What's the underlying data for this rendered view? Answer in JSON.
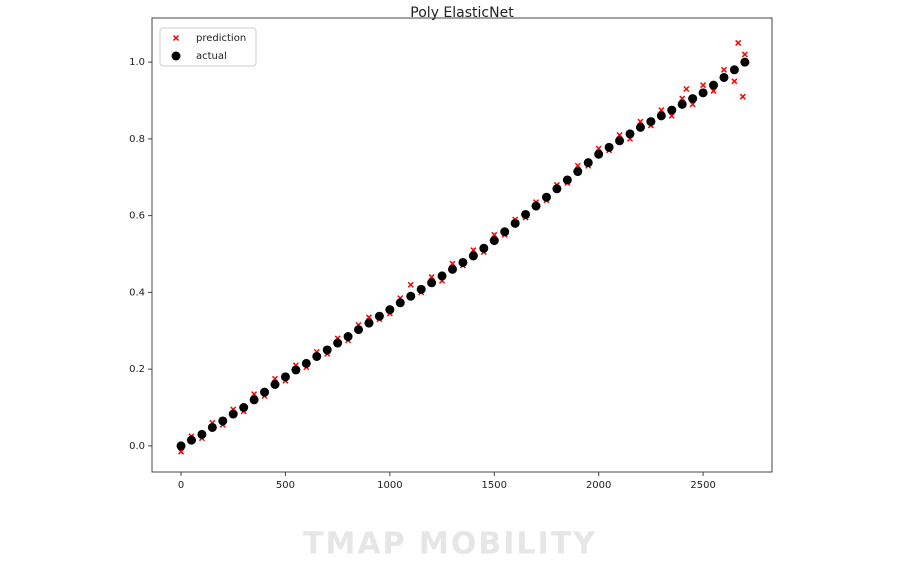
{
  "chart_data": {
    "type": "scatter",
    "title": "Poly ElasticNet",
    "xlim": [
      -139,
      2830
    ],
    "ylim": [
      -0.068,
      1.115
    ],
    "xticks": [
      0,
      500,
      1000,
      1500,
      2000,
      2500
    ],
    "yticks": [
      {
        "value": 0,
        "label": "0.0"
      },
      0.2,
      0.4,
      0.6,
      0.8,
      {
        "value": 1,
        "label": "1.0"
      }
    ],
    "legend": "upper left",
    "series": [
      {
        "name": "prediction",
        "color": "#ff0000",
        "marker": "x",
        "x": [
          0,
          50,
          100,
          150,
          200,
          250,
          300,
          350,
          400,
          450,
          500,
          550,
          600,
          650,
          700,
          750,
          800,
          850,
          900,
          950,
          1000,
          1050,
          1100,
          1150,
          1200,
          1250,
          1300,
          1350,
          1400,
          1450,
          1500,
          1550,
          1600,
          1650,
          1700,
          1750,
          1800,
          1850,
          1900,
          1950,
          2000,
          2050,
          2100,
          2150,
          2200,
          2250,
          2300,
          2350,
          2400,
          2450,
          2500,
          2550,
          2600,
          2650,
          2700,
          2668,
          2690,
          2420
        ],
        "values": [
          -0.015,
          0.025,
          0.02,
          0.06,
          0.055,
          0.095,
          0.09,
          0.135,
          0.13,
          0.175,
          0.17,
          0.21,
          0.205,
          0.245,
          0.24,
          0.28,
          0.275,
          0.315,
          0.335,
          0.33,
          0.345,
          0.385,
          0.42,
          0.4,
          0.44,
          0.43,
          0.475,
          0.47,
          0.51,
          0.505,
          0.55,
          0.55,
          0.59,
          0.595,
          0.635,
          0.64,
          0.68,
          0.685,
          0.73,
          0.73,
          0.775,
          0.77,
          0.81,
          0.8,
          0.845,
          0.835,
          0.875,
          0.86,
          0.905,
          0.89,
          0.94,
          0.925,
          0.98,
          0.95,
          1.02,
          1.05,
          0.91,
          0.93
        ]
      },
      {
        "name": "actual",
        "color": "#000000",
        "marker": "o",
        "x": [
          0,
          50,
          100,
          150,
          200,
          250,
          300,
          350,
          400,
          450,
          500,
          550,
          600,
          650,
          700,
          750,
          800,
          850,
          900,
          950,
          1000,
          1050,
          1100,
          1150,
          1200,
          1250,
          1300,
          1350,
          1400,
          1450,
          1500,
          1550,
          1600,
          1650,
          1700,
          1750,
          1800,
          1850,
          1900,
          1950,
          2000,
          2050,
          2100,
          2150,
          2200,
          2250,
          2300,
          2350,
          2400,
          2450,
          2500,
          2550,
          2600,
          2650,
          2700
        ],
        "values": [
          0,
          0.015,
          0.03,
          0.048,
          0.065,
          0.083,
          0.1,
          0.12,
          0.14,
          0.16,
          0.18,
          0.198,
          0.215,
          0.233,
          0.25,
          0.268,
          0.285,
          0.303,
          0.32,
          0.338,
          0.355,
          0.373,
          0.39,
          0.408,
          0.425,
          0.443,
          0.46,
          0.478,
          0.495,
          0.515,
          0.535,
          0.558,
          0.58,
          0.603,
          0.625,
          0.648,
          0.67,
          0.693,
          0.715,
          0.738,
          0.76,
          0.778,
          0.795,
          0.813,
          0.83,
          0.845,
          0.86,
          0.875,
          0.89,
          0.905,
          0.92,
          0.94,
          0.96,
          0.98,
          1
        ]
      }
    ]
  },
  "watermark": "TMAP MOBILITY"
}
